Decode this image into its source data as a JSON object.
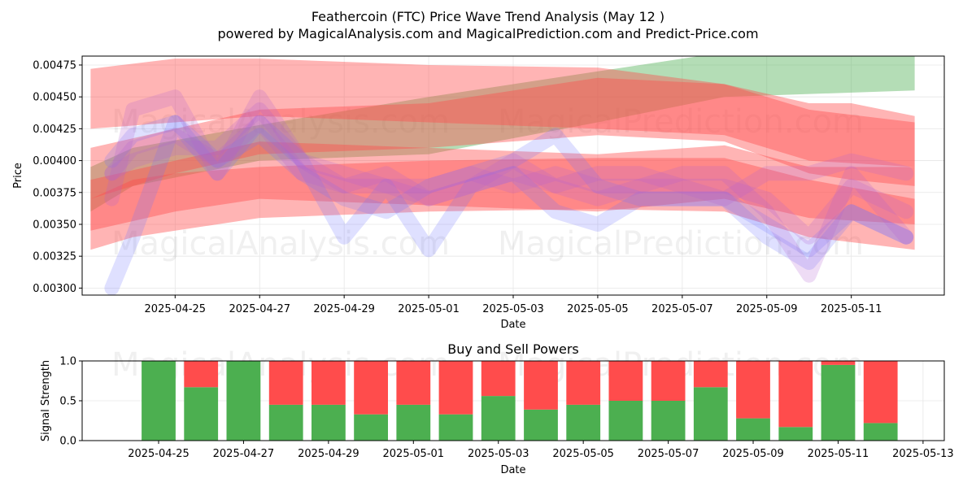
{
  "title_line1": "Feathercoin (FTC) Price Wave Trend Analysis (May 12 )",
  "title_line2": "powered by MagicalAnalysis.com and MagicalPrediction.com and Predict-Price.com",
  "watermarks": [
    "MagicalAnalysis.com",
    "MagicalPrediction.com"
  ],
  "colors": {
    "green_band": "#4CAF50",
    "red_band": "#FF4C4C",
    "blue_band": "#6F73FF",
    "purple_band": "#B05FD0",
    "buy": "#4CAF50",
    "sell": "#FF4C4C",
    "grid": "#e6e6e6"
  },
  "chart_data": [
    {
      "type": "area",
      "title": "",
      "xlabel": "Date",
      "ylabel": "Price",
      "xlim": [
        "2025-04-22.8",
        "2025-05-13.2"
      ],
      "ylim": [
        0.002945,
        0.00482
      ],
      "x_ticks": [
        "2025-04-25",
        "2025-04-27",
        "2025-04-29",
        "2025-05-01",
        "2025-05-03",
        "2025-05-05",
        "2025-05-07",
        "2025-05-09",
        "2025-05-11"
      ],
      "y_ticks": [
        "0.00300",
        "0.00325",
        "0.00350",
        "0.00375",
        "0.00400",
        "0.00425",
        "0.00450",
        "0.00475"
      ],
      "grid": true,
      "bands": [
        {
          "color": "green",
          "x": [
            "2025-04-23",
            "2025-04-24",
            "2025-04-27",
            "2025-05-01",
            "2025-05-05",
            "2025-05-08",
            "2025-05-12.5"
          ],
          "upper": [
            0.00395,
            0.0041,
            0.00428,
            0.0045,
            0.0047,
            0.00485,
            0.00485
          ],
          "lower": [
            0.0036,
            0.0038,
            0.004,
            0.00405,
            0.0043,
            0.0045,
            0.00455
          ]
        },
        {
          "color": "red",
          "x": [
            "2025-04-23",
            "2025-04-25",
            "2025-04-27",
            "2025-05-01",
            "2025-05-05",
            "2025-05-08",
            "2025-05-10",
            "2025-05-12.5"
          ],
          "upper": [
            0.00472,
            0.0048,
            0.0048,
            0.00475,
            0.00473,
            0.0046,
            0.0044,
            0.0043
          ],
          "lower": [
            0.00425,
            0.0043,
            0.00435,
            0.0043,
            0.00425,
            0.0042,
            0.004,
            0.00395
          ]
        },
        {
          "color": "red",
          "x": [
            "2025-04-23",
            "2025-04-25",
            "2025-04-27",
            "2025-05-01",
            "2025-05-05",
            "2025-05-08",
            "2025-05-10",
            "2025-05-11",
            "2025-05-12.5"
          ],
          "upper": [
            0.0041,
            0.00425,
            0.0044,
            0.00445,
            0.00465,
            0.0046,
            0.00445,
            0.00445,
            0.00435
          ],
          "lower": [
            0.0037,
            0.0039,
            0.00405,
            0.0041,
            0.0042,
            0.00415,
            0.0039,
            0.00385,
            0.0038
          ]
        },
        {
          "color": "red",
          "x": [
            "2025-04-23",
            "2025-04-25",
            "2025-04-27",
            "2025-05-01",
            "2025-05-05",
            "2025-05-08",
            "2025-05-10",
            "2025-05-12.5"
          ],
          "upper": [
            0.00385,
            0.004,
            0.00415,
            0.0041,
            0.00405,
            0.00412,
            0.00395,
            0.00395
          ],
          "lower": [
            0.00345,
            0.0036,
            0.0037,
            0.00365,
            0.0036,
            0.0037,
            0.00355,
            0.0035
          ]
        },
        {
          "color": "red",
          "x": [
            "2025-04-23",
            "2025-04-24",
            "2025-04-25",
            "2025-04-27",
            "2025-05-01",
            "2025-05-05",
            "2025-05-08",
            "2025-05-10",
            "2025-05-12.5"
          ],
          "upper": [
            0.0037,
            0.00385,
            0.0039,
            0.00395,
            0.004,
            0.00402,
            0.00402,
            0.00385,
            0.0037
          ],
          "lower": [
            0.0033,
            0.0034,
            0.00345,
            0.00355,
            0.0036,
            0.00362,
            0.0036,
            0.0034,
            0.0033
          ]
        }
      ],
      "wave_lines": [
        {
          "color": "blue",
          "x": [
            "2025-04-23.5",
            "2025-04-24",
            "2025-04-25",
            "2025-04-26",
            "2025-04-27",
            "2025-04-28",
            "2025-04-29",
            "2025-04-30",
            "2025-05-01",
            "2025-05-02",
            "2025-05-03",
            "2025-05-04",
            "2025-05-05",
            "2025-05-06",
            "2025-05-07",
            "2025-05-08",
            "2025-05-09",
            "2025-05-10",
            "2025-05-11",
            "2025-05-12.3"
          ],
          "y": [
            0.003,
            0.0034,
            0.0043,
            0.0039,
            0.0043,
            0.004,
            0.0034,
            0.0038,
            0.0033,
            0.0038,
            0.0039,
            0.0036,
            0.0035,
            0.0037,
            0.0037,
            0.0037,
            0.0034,
            0.0032,
            0.0036,
            0.0034
          ]
        },
        {
          "color": "blue",
          "x": [
            "2025-04-23.5",
            "2025-04-24",
            "2025-04-25",
            "2025-04-26",
            "2025-04-27",
            "2025-04-28",
            "2025-04-29",
            "2025-04-30",
            "2025-05-01",
            "2025-05-02",
            "2025-05-03",
            "2025-05-04",
            "2025-05-05",
            "2025-05-06",
            "2025-05-07",
            "2025-05-08",
            "2025-05-09",
            "2025-05-10",
            "2025-05-11",
            "2025-05-12.3"
          ],
          "y": [
            0.004,
            0.0042,
            0.0043,
            0.004,
            0.0042,
            0.0039,
            0.0037,
            0.0036,
            0.0038,
            0.0039,
            0.004,
            0.0042,
            0.0038,
            0.0037,
            0.0037,
            0.0037,
            0.0035,
            0.0033,
            0.0036,
            0.0034
          ]
        },
        {
          "color": "purple",
          "x": [
            "2025-04-23.5",
            "2025-04-24",
            "2025-04-25",
            "2025-04-26",
            "2025-04-27",
            "2025-04-28",
            "2025-04-29",
            "2025-04-30",
            "2025-05-01",
            "2025-05-02",
            "2025-05-03",
            "2025-05-04",
            "2025-05-05",
            "2025-05-06",
            "2025-05-07",
            "2025-05-08",
            "2025-05-09",
            "2025-05-10",
            "2025-05-11",
            "2025-05-12.3"
          ],
          "y": [
            0.0037,
            0.0044,
            0.0045,
            0.0039,
            0.0045,
            0.004,
            0.0038,
            0.0039,
            0.0037,
            0.0038,
            0.004,
            0.0038,
            0.0039,
            0.0039,
            0.0038,
            0.0037,
            0.0039,
            0.0039,
            0.004,
            0.0039
          ]
        },
        {
          "color": "purple",
          "x": [
            "2025-04-23.5",
            "2025-04-24",
            "2025-04-25",
            "2025-04-26",
            "2025-04-27",
            "2025-04-28",
            "2025-04-29",
            "2025-04-30",
            "2025-05-01",
            "2025-05-02",
            "2025-05-03",
            "2025-05-04",
            "2025-05-05",
            "2025-05-06",
            "2025-05-07",
            "2025-05-08",
            "2025-05-09",
            "2025-05-10",
            "2025-05-11",
            "2025-05-12.3"
          ],
          "y": [
            0.0039,
            0.0041,
            0.0042,
            0.004,
            0.0043,
            0.0039,
            0.0038,
            0.0038,
            0.0037,
            0.0038,
            0.0039,
            0.0038,
            0.0037,
            0.0038,
            0.0038,
            0.0038,
            0.0037,
            0.0034,
            0.0038,
            0.0036
          ]
        },
        {
          "color": "purple",
          "x": [
            "2025-04-23.5",
            "2025-04-24",
            "2025-04-25",
            "2025-04-26",
            "2025-04-27",
            "2025-04-28",
            "2025-04-29",
            "2025-04-30",
            "2025-05-01",
            "2025-05-02",
            "2025-05-03",
            "2025-05-04",
            "2025-05-05",
            "2025-05-06",
            "2025-05-07",
            "2025-05-08",
            "2025-05-09",
            "2025-05-10",
            "2025-05-11",
            "2025-05-12.3"
          ],
          "y": [
            0.0039,
            0.004,
            0.0041,
            0.0041,
            0.0044,
            0.004,
            0.0039,
            0.0038,
            0.0038,
            0.0039,
            0.0038,
            0.0039,
            0.0038,
            0.0038,
            0.0039,
            0.0039,
            0.0036,
            0.0031,
            0.0039,
            0.0034
          ]
        }
      ]
    },
    {
      "type": "bar",
      "title": "Buy and Sell Powers",
      "xlabel": "Date",
      "ylabel": "Signal Strength",
      "xlim": [
        "2025-04-23.2",
        "2025-05-13.5"
      ],
      "ylim": [
        0,
        1.0
      ],
      "x_ticks": [
        "2025-04-25",
        "2025-04-27",
        "2025-04-29",
        "2025-05-01",
        "2025-05-03",
        "2025-05-05",
        "2025-05-07",
        "2025-05-09",
        "2025-05-11",
        "2025-05-13"
      ],
      "y_ticks": [
        "0.0",
        "0.5",
        "1.0"
      ],
      "grid": true,
      "categories": [
        "2025-04-25",
        "2025-04-26",
        "2025-04-27",
        "2025-04-28",
        "2025-04-29",
        "2025-04-30",
        "2025-05-01",
        "2025-05-02",
        "2025-05-03",
        "2025-05-04",
        "2025-05-05",
        "2025-05-06",
        "2025-05-07",
        "2025-05-08",
        "2025-05-09",
        "2025-05-10",
        "2025-05-11",
        "2025-05-12"
      ],
      "series": [
        {
          "name": "Buy",
          "values": [
            1.0,
            0.67,
            1.0,
            0.45,
            0.45,
            0.33,
            0.45,
            0.33,
            0.56,
            0.39,
            0.45,
            0.5,
            0.5,
            0.67,
            0.28,
            0.17,
            0.95,
            0.22
          ]
        },
        {
          "name": "Sell",
          "values": [
            0.0,
            0.33,
            0.0,
            0.55,
            0.55,
            0.67,
            0.55,
            0.67,
            0.44,
            0.61,
            0.55,
            0.5,
            0.5,
            0.33,
            0.72,
            0.83,
            0.05,
            0.78
          ]
        }
      ]
    }
  ]
}
